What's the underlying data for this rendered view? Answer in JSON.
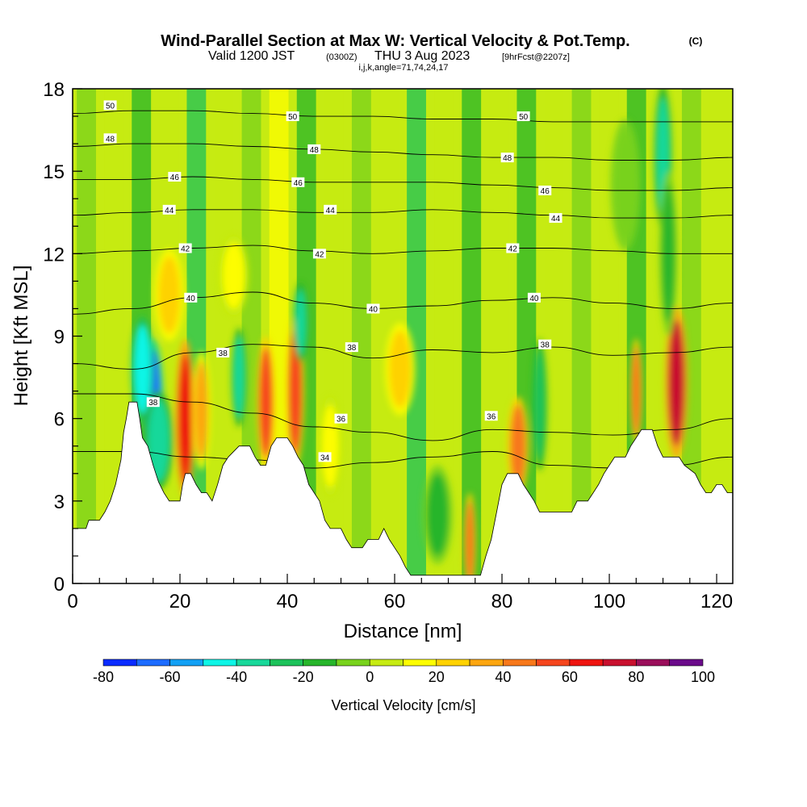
{
  "chart_data": {
    "type": "heatmap",
    "title": "Wind-Parallel Section at Max W: Vertical Velocity & Pot.Temp.",
    "title_mark": "(C)",
    "subtitle": {
      "valid": "Valid 1200 JST",
      "utc": "(0300Z)",
      "date": "THU 3 Aug 2023",
      "forecast": "[9hrFcst@2207z]"
    },
    "indices_line": "i,j,k,angle=71,74,24,17",
    "xlabel": "Distance [nm]",
    "ylabel": "Height [Kft MSL]",
    "xlim": [
      0,
      123
    ],
    "ylim": [
      0,
      18
    ],
    "x_ticks": [
      "0",
      "20",
      "40",
      "60",
      "80",
      "100",
      "120"
    ],
    "y_ticks": [
      "0",
      "3",
      "6",
      "9",
      "12",
      "15",
      "18"
    ],
    "colorbar": {
      "label": "Vertical Velocity [cm/s]",
      "tick_labels": [
        "-80",
        "-60",
        "-40",
        "-20",
        "0",
        "20",
        "40",
        "60",
        "80",
        "100"
      ],
      "bins": [
        -80,
        -70,
        -60,
        -50,
        -40,
        -30,
        -20,
        -10,
        0,
        10,
        20,
        30,
        40,
        50,
        60,
        70,
        80,
        90,
        100
      ],
      "colors": [
        "#0a2bff",
        "#1c6bff",
        "#12a0f4",
        "#0ef5e6",
        "#18d89a",
        "#1cc25a",
        "#26b52a",
        "#78d21c",
        "#c6eb12",
        "#fdfd00",
        "#fed200",
        "#fca610",
        "#f7781a",
        "#f5451d",
        "#ee1410",
        "#c8102e",
        "#9a0e5a",
        "#6a0a8a"
      ]
    },
    "terrain_kft": [
      [
        0,
        2.0
      ],
      [
        2.5,
        2.0
      ],
      [
        3,
        2.3
      ],
      [
        5,
        2.3
      ],
      [
        6,
        2.6
      ],
      [
        7,
        3.0
      ],
      [
        8,
        3.6
      ],
      [
        9,
        4.5
      ],
      [
        9.5,
        5.5
      ],
      [
        10,
        6.0
      ],
      [
        10.5,
        6.6
      ],
      [
        12,
        6.6
      ],
      [
        12.5,
        6.0
      ],
      [
        13,
        5.3
      ],
      [
        14,
        5.0
      ],
      [
        15,
        4.3
      ],
      [
        16,
        3.7
      ],
      [
        17,
        3.3
      ],
      [
        18,
        3.0
      ],
      [
        20,
        3.0
      ],
      [
        20.5,
        3.6
      ],
      [
        21,
        4.0
      ],
      [
        22,
        4.0
      ],
      [
        23,
        3.6
      ],
      [
        24,
        3.3
      ],
      [
        25,
        3.3
      ],
      [
        26,
        3.0
      ],
      [
        27,
        3.6
      ],
      [
        28,
        4.3
      ],
      [
        29,
        4.6
      ],
      [
        31,
        5.0
      ],
      [
        33,
        5.0
      ],
      [
        34,
        4.6
      ],
      [
        35,
        4.3
      ],
      [
        36,
        4.3
      ],
      [
        37,
        5.0
      ],
      [
        38,
        5.3
      ],
      [
        40,
        5.3
      ],
      [
        41,
        5.0
      ],
      [
        42,
        4.6
      ],
      [
        43,
        4.3
      ],
      [
        44,
        3.6
      ],
      [
        45,
        3.3
      ],
      [
        46,
        3.0
      ],
      [
        47,
        2.3
      ],
      [
        48,
        2.0
      ],
      [
        50,
        2.0
      ],
      [
        51,
        1.6
      ],
      [
        52,
        1.3
      ],
      [
        54,
        1.3
      ],
      [
        55,
        1.6
      ],
      [
        57,
        1.6
      ],
      [
        58,
        2.0
      ],
      [
        59,
        1.6
      ],
      [
        60,
        1.3
      ],
      [
        61,
        1.0
      ],
      [
        62,
        0.6
      ],
      [
        63,
        0.3
      ],
      [
        76,
        0.3
      ],
      [
        77,
        1.0
      ],
      [
        78,
        1.6
      ],
      [
        79,
        2.6
      ],
      [
        80,
        3.6
      ],
      [
        81,
        4.0
      ],
      [
        83,
        4.0
      ],
      [
        84,
        3.6
      ],
      [
        85,
        3.3
      ],
      [
        86,
        3.0
      ],
      [
        87,
        2.6
      ],
      [
        93,
        2.6
      ],
      [
        94,
        3.0
      ],
      [
        96,
        3.0
      ],
      [
        97,
        3.3
      ],
      [
        98,
        3.6
      ],
      [
        99,
        4.0
      ],
      [
        100,
        4.3
      ],
      [
        101,
        4.6
      ],
      [
        103,
        4.6
      ],
      [
        104,
        5.0
      ],
      [
        105,
        5.3
      ],
      [
        106,
        5.6
      ],
      [
        108,
        5.6
      ],
      [
        109,
        5.0
      ],
      [
        110,
        4.6
      ],
      [
        113,
        4.6
      ],
      [
        114,
        4.3
      ],
      [
        116,
        4.0
      ],
      [
        117,
        3.6
      ],
      [
        118,
        3.3
      ],
      [
        119,
        3.3
      ],
      [
        120,
        3.6
      ],
      [
        121,
        3.6
      ],
      [
        122,
        3.3
      ],
      [
        123,
        3.3
      ]
    ],
    "theta_contour_labels": [
      {
        "text": "50",
        "x": 7,
        "y": 17.4
      },
      {
        "text": "48",
        "x": 7,
        "y": 16.2
      },
      {
        "text": "46",
        "x": 19,
        "y": 14.8
      },
      {
        "text": "44",
        "x": 18,
        "y": 13.6
      },
      {
        "text": "42",
        "x": 21,
        "y": 12.2
      },
      {
        "text": "40",
        "x": 22,
        "y": 10.4
      },
      {
        "text": "38",
        "x": 28,
        "y": 8.4
      },
      {
        "text": "38",
        "x": 15,
        "y": 6.6
      },
      {
        "text": "50",
        "x": 41,
        "y": 17.0
      },
      {
        "text": "48",
        "x": 45,
        "y": 15.8
      },
      {
        "text": "46",
        "x": 42,
        "y": 14.6
      },
      {
        "text": "44",
        "x": 48,
        "y": 13.6
      },
      {
        "text": "42",
        "x": 46,
        "y": 12.0
      },
      {
        "text": "40",
        "x": 56,
        "y": 10.0
      },
      {
        "text": "38",
        "x": 52,
        "y": 8.6
      },
      {
        "text": "36",
        "x": 50,
        "y": 6.0
      },
      {
        "text": "34",
        "x": 47,
        "y": 4.6
      },
      {
        "text": "50",
        "x": 84,
        "y": 17.0
      },
      {
        "text": "48",
        "x": 81,
        "y": 15.5
      },
      {
        "text": "46",
        "x": 88,
        "y": 14.3
      },
      {
        "text": "44",
        "x": 90,
        "y": 13.3
      },
      {
        "text": "42",
        "x": 82,
        "y": 12.2
      },
      {
        "text": "40",
        "x": 86,
        "y": 10.4
      },
      {
        "text": "38",
        "x": 88,
        "y": 8.7
      },
      {
        "text": "36",
        "x": 78,
        "y": 6.1
      }
    ],
    "theta_contour_levels": [
      {
        "level": 34,
        "y": [
          4.8,
          4.8,
          4.6,
          4.5,
          4.2,
          4.4,
          4.6,
          4.8,
          4.3,
          4.2,
          4.3,
          4.6
        ]
      },
      {
        "level": 36,
        "y": [
          6.9,
          6.9,
          6.6,
          6.2,
          5.7,
          5.5,
          5.2,
          5.6,
          5.5,
          5.4,
          5.6,
          6.0
        ]
      },
      {
        "level": 38,
        "y": [
          8.0,
          7.8,
          8.4,
          8.7,
          8.6,
          8.2,
          8.5,
          8.4,
          8.6,
          8.3,
          8.4,
          8.6
        ]
      },
      {
        "level": 40,
        "y": [
          9.8,
          10.0,
          10.4,
          10.6,
          10.2,
          10.0,
          10.1,
          10.3,
          10.4,
          10.2,
          10.0,
          10.2
        ]
      },
      {
        "level": 42,
        "y": [
          12.0,
          12.1,
          12.2,
          12.3,
          12.1,
          12.0,
          12.1,
          12.2,
          12.2,
          12.1,
          12.0,
          12.0
        ]
      },
      {
        "level": 44,
        "y": [
          13.4,
          13.5,
          13.6,
          13.6,
          13.5,
          13.5,
          13.6,
          13.5,
          13.4,
          13.3,
          13.3,
          13.4
        ]
      },
      {
        "level": 46,
        "y": [
          14.7,
          14.7,
          14.8,
          14.7,
          14.6,
          14.6,
          14.6,
          14.5,
          14.4,
          14.3,
          14.3,
          14.4
        ]
      },
      {
        "level": 48,
        "y": [
          15.9,
          16.0,
          16.0,
          15.9,
          15.8,
          15.7,
          15.6,
          15.5,
          15.5,
          15.4,
          15.4,
          15.5
        ]
      },
      {
        "level": 50,
        "y": [
          17.1,
          17.2,
          17.2,
          17.1,
          17.0,
          17.0,
          16.9,
          16.9,
          16.8,
          16.8,
          16.8,
          16.8
        ]
      }
    ],
    "w_features": [
      {
        "x": 15,
        "y": 6.5,
        "w": 1.4,
        "h": 2.0,
        "value": -70
      },
      {
        "x": 13,
        "y": 7.8,
        "w": 1.5,
        "h": 1.6,
        "value": -45
      },
      {
        "x": 16,
        "y": 5.2,
        "w": 2.0,
        "h": 1.5,
        "value": -35
      },
      {
        "x": 21,
        "y": 6.0,
        "w": 1.3,
        "h": 2.4,
        "value": 60
      },
      {
        "x": 24,
        "y": 6.3,
        "w": 1.2,
        "h": 1.8,
        "value": 30
      },
      {
        "x": 18,
        "y": 10.5,
        "w": 2.0,
        "h": 1.4,
        "value": 20
      },
      {
        "x": 30,
        "y": 11.2,
        "w": 2.0,
        "h": 1.2,
        "value": 15
      },
      {
        "x": 36,
        "y": 6.6,
        "w": 1.2,
        "h": 2.0,
        "value": 55
      },
      {
        "x": 41.5,
        "y": 7.0,
        "w": 1.2,
        "h": 2.3,
        "value": 50
      },
      {
        "x": 42.5,
        "y": 9.5,
        "w": 1.0,
        "h": 1.2,
        "value": -40
      },
      {
        "x": 31,
        "y": 7.5,
        "w": 1.0,
        "h": 1.5,
        "value": -35
      },
      {
        "x": 61,
        "y": 7.8,
        "w": 2.0,
        "h": 1.4,
        "value": 25
      },
      {
        "x": 48,
        "y": 5.0,
        "w": 1.5,
        "h": 1.5,
        "value": 15
      },
      {
        "x": 68,
        "y": 2.5,
        "w": 2.0,
        "h": 1.5,
        "value": -20
      },
      {
        "x": 74,
        "y": 1.5,
        "w": 0.8,
        "h": 1.5,
        "value": 40
      },
      {
        "x": 83,
        "y": 5.0,
        "w": 1.4,
        "h": 1.5,
        "value": 40
      },
      {
        "x": 87,
        "y": 6.5,
        "w": 1.0,
        "h": 2.0,
        "value": -30
      },
      {
        "x": 105,
        "y": 7.0,
        "w": 0.8,
        "h": 1.6,
        "value": 40
      },
      {
        "x": 112.5,
        "y": 7.3,
        "w": 1.5,
        "h": 2.3,
        "value": 70
      },
      {
        "x": 110,
        "y": 15.5,
        "w": 1.2,
        "h": 2.2,
        "value": -40
      },
      {
        "x": 111,
        "y": 12.0,
        "w": 1.2,
        "h": 2.5,
        "value": -20
      },
      {
        "x": 103,
        "y": 14.5,
        "w": 2.0,
        "h": 2.0,
        "value": -10
      }
    ]
  }
}
